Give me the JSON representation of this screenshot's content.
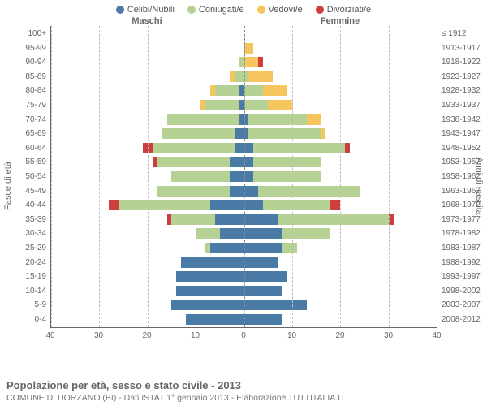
{
  "legend": [
    {
      "label": "Celibi/Nubili",
      "color": "#4a7aa6"
    },
    {
      "label": "Coniugati/e",
      "color": "#b6d194"
    },
    {
      "label": "Vedovi/e",
      "color": "#f7c55e"
    },
    {
      "label": "Divorziati/e",
      "color": "#cf3e3e"
    }
  ],
  "headers": {
    "male": "Maschi",
    "female": "Femmine"
  },
  "axis_labels": {
    "left": "Fasce di età",
    "right": "Anni di nascita"
  },
  "xlim": 40,
  "xticks": [
    40,
    30,
    20,
    10,
    0,
    10,
    20,
    30,
    40
  ],
  "age_groups": [
    {
      "age": "100+",
      "birth": "≤ 1912",
      "m": [
        0,
        0,
        0,
        0
      ],
      "f": [
        0,
        0,
        0,
        0
      ]
    },
    {
      "age": "95-99",
      "birth": "1913-1917",
      "m": [
        0,
        0,
        0,
        0
      ],
      "f": [
        0,
        0,
        2,
        0
      ]
    },
    {
      "age": "90-94",
      "birth": "1918-1922",
      "m": [
        0,
        1,
        0,
        0
      ],
      "f": [
        0,
        0,
        3,
        1
      ]
    },
    {
      "age": "85-89",
      "birth": "1923-1927",
      "m": [
        0,
        2,
        1,
        0
      ],
      "f": [
        0,
        1,
        5,
        0
      ]
    },
    {
      "age": "80-84",
      "birth": "1928-1932",
      "m": [
        1,
        5,
        1,
        0
      ],
      "f": [
        0,
        4,
        5,
        0
      ]
    },
    {
      "age": "75-79",
      "birth": "1933-1937",
      "m": [
        1,
        7,
        1,
        0
      ],
      "f": [
        0,
        5,
        5,
        0
      ]
    },
    {
      "age": "70-74",
      "birth": "1938-1942",
      "m": [
        1,
        15,
        0,
        0
      ],
      "f": [
        1,
        12,
        3,
        0
      ]
    },
    {
      "age": "65-69",
      "birth": "1943-1947",
      "m": [
        2,
        15,
        0,
        0
      ],
      "f": [
        1,
        15,
        1,
        0
      ]
    },
    {
      "age": "60-64",
      "birth": "1948-1952",
      "m": [
        2,
        17,
        0,
        2
      ],
      "f": [
        2,
        19,
        0,
        1
      ]
    },
    {
      "age": "55-59",
      "birth": "1953-1957",
      "m": [
        3,
        15,
        0,
        1
      ],
      "f": [
        2,
        14,
        0,
        0
      ]
    },
    {
      "age": "50-54",
      "birth": "1958-1962",
      "m": [
        3,
        12,
        0,
        0
      ],
      "f": [
        2,
        14,
        0,
        0
      ]
    },
    {
      "age": "45-49",
      "birth": "1963-1967",
      "m": [
        3,
        15,
        0,
        0
      ],
      "f": [
        3,
        21,
        0,
        0
      ]
    },
    {
      "age": "40-44",
      "birth": "1968-1972",
      "m": [
        7,
        19,
        0,
        2
      ],
      "f": [
        4,
        14,
        0,
        2
      ]
    },
    {
      "age": "35-39",
      "birth": "1973-1977",
      "m": [
        6,
        9,
        0,
        1
      ],
      "f": [
        7,
        23,
        0,
        1
      ]
    },
    {
      "age": "30-34",
      "birth": "1978-1982",
      "m": [
        5,
        5,
        0,
        0
      ],
      "f": [
        8,
        10,
        0,
        0
      ]
    },
    {
      "age": "25-29",
      "birth": "1983-1987",
      "m": [
        7,
        1,
        0,
        0
      ],
      "f": [
        8,
        3,
        0,
        0
      ]
    },
    {
      "age": "20-24",
      "birth": "1988-1992",
      "m": [
        13,
        0,
        0,
        0
      ],
      "f": [
        7,
        0,
        0,
        0
      ]
    },
    {
      "age": "15-19",
      "birth": "1993-1997",
      "m": [
        14,
        0,
        0,
        0
      ],
      "f": [
        9,
        0,
        0,
        0
      ]
    },
    {
      "age": "10-14",
      "birth": "1998-2002",
      "m": [
        14,
        0,
        0,
        0
      ],
      "f": [
        8,
        0,
        0,
        0
      ]
    },
    {
      "age": "5-9",
      "birth": "2003-2007",
      "m": [
        15,
        0,
        0,
        0
      ],
      "f": [
        13,
        0,
        0,
        0
      ]
    },
    {
      "age": "0-4",
      "birth": "2008-2012",
      "m": [
        12,
        0,
        0,
        0
      ],
      "f": [
        8,
        0,
        0,
        0
      ]
    }
  ],
  "footer": {
    "title": "Popolazione per età, sesso e stato civile - 2013",
    "sub": "COMUNE DI DORZANO (BI) - Dati ISTAT 1° gennaio 2013 - Elaborazione TUTTITALIA.IT"
  },
  "colors": {
    "grid": "#bdbdbd",
    "background": "#ffffff"
  }
}
